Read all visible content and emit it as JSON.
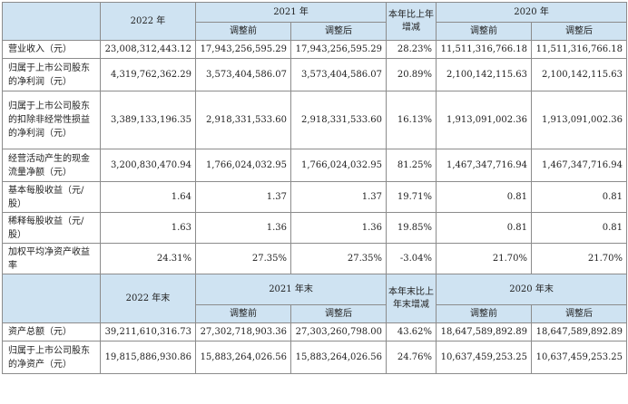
{
  "header1": {
    "year_2022": "2022 年",
    "year_2021": "2021 年",
    "change": "本年比上年增减",
    "year_2020": "2020 年",
    "before": "调整前",
    "after": "调整后"
  },
  "rows1": [
    {
      "label": "营业收入（元）",
      "v2022": "23,008,312,443.12",
      "v2021_before": "17,943,256,595.29",
      "v2021_after": "17,943,256,595.29",
      "change": "28.23%",
      "v2020_before": "11,511,316,766.18",
      "v2020_after": "11,511,316,766.18"
    },
    {
      "label": "归属于上市公司股东的净利润（元）",
      "v2022": "4,319,762,362.29",
      "v2021_before": "3,573,404,586.07",
      "v2021_after": "3,573,404,586.07",
      "change": "20.89%",
      "v2020_before": "2,100,142,115.63",
      "v2020_after": "2,100,142,115.63"
    },
    {
      "label": "归属于上市公司股东的扣除非经常性损益的净利润（元）",
      "v2022": "3,389,133,196.35",
      "v2021_before": "2,918,331,533.60",
      "v2021_after": "2,918,331,533.60",
      "change": "16.13%",
      "v2020_before": "1,913,091,002.36",
      "v2020_after": "1,913,091,002.36"
    },
    {
      "label": "经营活动产生的现金流量净额（元）",
      "v2022": "3,200,830,470.94",
      "v2021_before": "1,766,024,032.95",
      "v2021_after": "1,766,024,032.95",
      "change": "81.25%",
      "v2020_before": "1,467,347,716.94",
      "v2020_after": "1,467,347,716.94"
    },
    {
      "label": "基本每股收益（元/股）",
      "v2022": "1.64",
      "v2021_before": "1.37",
      "v2021_after": "1.37",
      "change": "19.71%",
      "v2020_before": "0.81",
      "v2020_after": "0.81"
    },
    {
      "label": "稀释每股收益（元/股）",
      "v2022": "1.63",
      "v2021_before": "1.36",
      "v2021_after": "1.36",
      "change": "19.85%",
      "v2020_before": "0.81",
      "v2020_after": "0.81"
    },
    {
      "label": "加权平均净资产收益率",
      "v2022": "24.31%",
      "v2021_before": "27.35%",
      "v2021_after": "27.35%",
      "change": "-3.04%",
      "v2020_before": "21.70%",
      "v2020_after": "21.70%"
    }
  ],
  "header2": {
    "year_2022": "2022 年末",
    "year_2021": "2021 年末",
    "change": "本年末比上年末增减",
    "year_2020": "2020 年末",
    "before": "调整前",
    "after": "调整后"
  },
  "rows2": [
    {
      "label": "资产总额（元）",
      "v2022": "39,211,610,316.73",
      "v2021_before": "27,302,718,903.36",
      "v2021_after": "27,303,260,798.00",
      "change": "43.62%",
      "v2020_before": "18,647,589,892.89",
      "v2020_after": "18,647,589,892.89"
    },
    {
      "label": "归属于上市公司股东的净资产（元）",
      "v2022": "19,815,886,930.86",
      "v2021_before": "15,883,264,026.56",
      "v2021_after": "15,883,264,026.56",
      "change": "24.76%",
      "v2020_before": "10,637,459,253.25",
      "v2020_after": "10,637,459,253.25"
    }
  ]
}
